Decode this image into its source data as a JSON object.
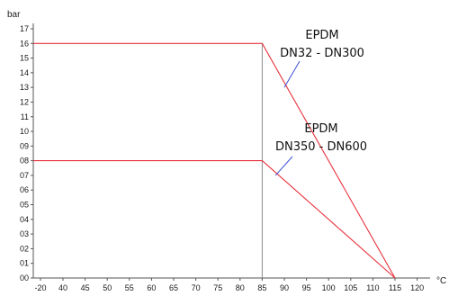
{
  "chart_data": {
    "type": "line",
    "ylabel": "bar",
    "xlabel": "°C",
    "x_ticks": [
      "-20",
      "40",
      "45",
      "50",
      "55",
      "60",
      "65",
      "70",
      "75",
      "80",
      "85",
      "90",
      "95",
      "100",
      "105",
      "110",
      "115",
      "120"
    ],
    "y_ticks": [
      "00",
      "01",
      "02",
      "03",
      "04",
      "05",
      "06",
      "07",
      "08",
      "09",
      "10",
      "11",
      "12",
      "13",
      "14",
      "15",
      "16",
      "17"
    ],
    "ylim": [
      0,
      17
    ],
    "grid": false,
    "series": [
      {
        "name": "EPDM DN32 - DN300",
        "x": [
          -20,
          85,
          115
        ],
        "y": [
          16,
          16,
          0
        ]
      },
      {
        "name": "EPDM DN350 - DN600",
        "x": [
          -20,
          85,
          115
        ],
        "y": [
          8,
          8,
          0
        ]
      }
    ],
    "annotations": [
      {
        "lines": [
          "EPDM",
          "DN32 - DN300"
        ],
        "points_to": {
          "x": 90,
          "y": 13
        }
      },
      {
        "lines": [
          "EPDM",
          "DN350 - DN600"
        ],
        "points_to": {
          "x": 88,
          "y": 7
        }
      }
    ],
    "reference_line_x": 85,
    "colors": {
      "series": "#e8323c",
      "axis": "#555555",
      "reference": "#8c8c8c",
      "leader": "#3a4fd6"
    }
  }
}
